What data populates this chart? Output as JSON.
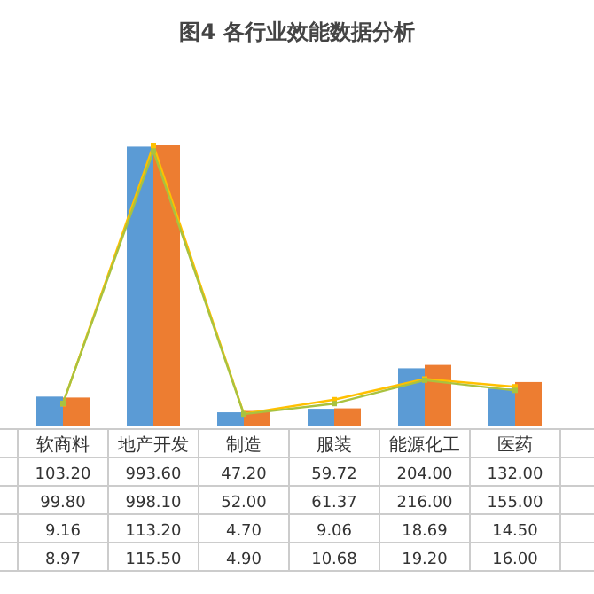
{
  "chart_data": {
    "type": "bar",
    "title": "图4 各行业效能数据分析",
    "categories": [
      "软商料",
      "地产开发",
      "制造",
      "服装",
      "能源化工",
      "医药"
    ],
    "series": [
      {
        "color": "#5b9bd5",
        "values": [
          103.2,
          993.6,
          47.2,
          59.72,
          204,
          132
        ],
        "value_labels": [
          "103.20",
          "993.60",
          "47.20",
          "59.72",
          "204.00",
          "132.00"
        ]
      },
      {
        "color": "#ed7d31",
        "values": [
          99.8,
          998.1,
          52,
          61.37,
          216,
          155
        ],
        "value_labels": [
          "99.80",
          "998.10",
          "52.00",
          "61.37",
          "216.00",
          "155.00"
        ]
      },
      {
        "type": "line",
        "axis": "y2",
        "color": "#a9c23f",
        "values": [
          9.16,
          113.2,
          4.7,
          9.06,
          18.69,
          14.5
        ],
        "value_labels": [
          "9.16",
          "113.20",
          "4.70",
          "9.06",
          "18.69",
          "14.50"
        ]
      },
      {
        "type": "line",
        "axis": "y2",
        "color": "#ffc000",
        "values": [
          8.97,
          115.5,
          4.9,
          10.68,
          19.2,
          16
        ],
        "value_labels": [
          "8.97",
          "115.50",
          "4.90",
          "10.68",
          "19.20",
          "16.00"
        ]
      }
    ],
    "marker": "square",
    "line_style": "solid"
  }
}
